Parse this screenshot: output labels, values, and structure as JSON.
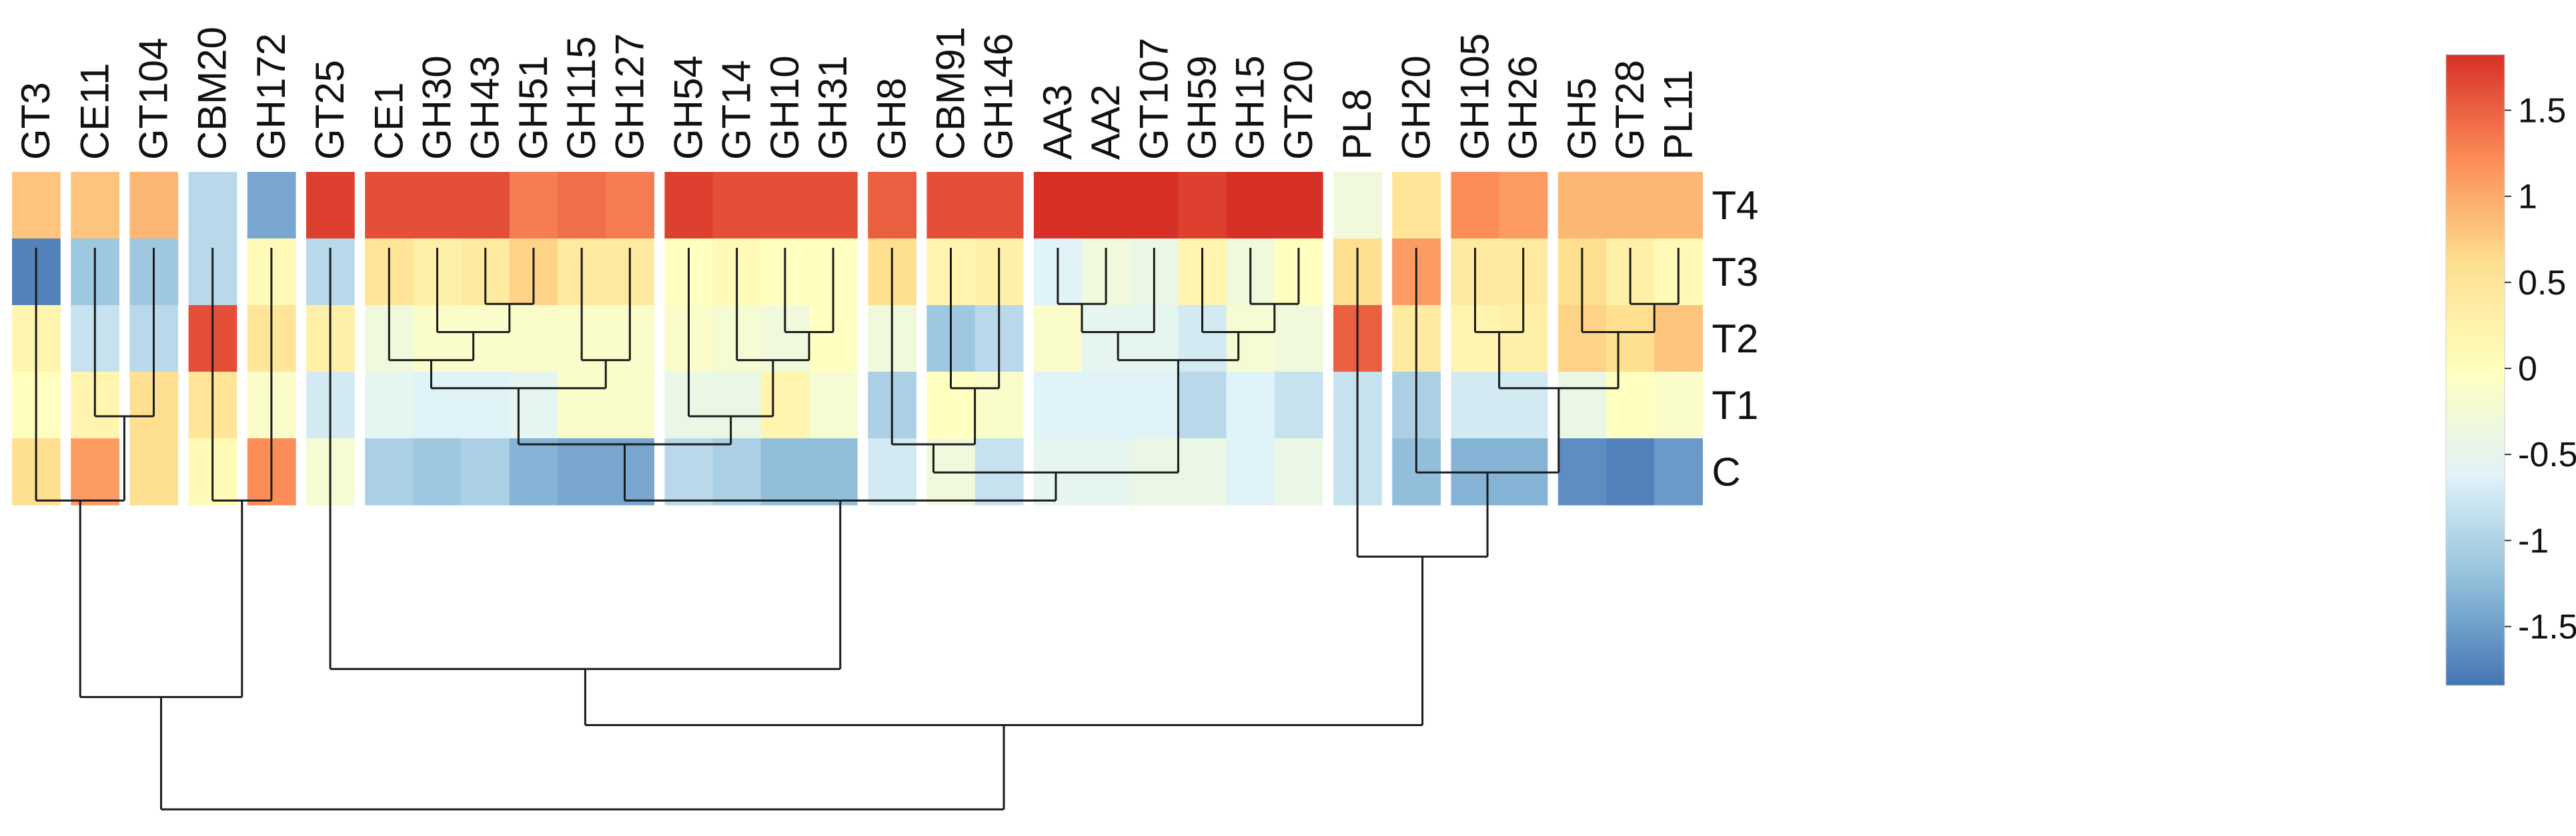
{
  "chart_data": {
    "type": "heatmap",
    "title": "",
    "xlabel": "",
    "ylabel": "",
    "rows": [
      "T4",
      "T3",
      "T2",
      "T1",
      "C"
    ],
    "columns": [
      "GT3",
      "CE11",
      "GT104",
      "CBM20",
      "GH172",
      "GT25",
      "CE1",
      "GH30",
      "GH43",
      "GH51",
      "GH115",
      "GH127",
      "GH54",
      "GT14",
      "GH10",
      "GH31",
      "GH8",
      "CBM91",
      "GH146",
      "AA3",
      "AA2",
      "GT107",
      "GH59",
      "GH15",
      "GT20",
      "PL8",
      "GH20",
      "GH105",
      "GH26",
      "GH5",
      "GT28",
      "PL11"
    ],
    "column_groups": [
      [
        0
      ],
      [
        1
      ],
      [
        2
      ],
      [
        3
      ],
      [
        4
      ],
      [
        5
      ],
      [
        6,
        7,
        8,
        9,
        10,
        11
      ],
      [
        12,
        13,
        14,
        15
      ],
      [
        16
      ],
      [
        17,
        18
      ],
      [
        19,
        20,
        21,
        22,
        23,
        24
      ],
      [
        25
      ],
      [
        26
      ],
      [
        27,
        28
      ],
      [
        29,
        30,
        31
      ]
    ],
    "values": [
      [
        0.8,
        0.8,
        0.9,
        -0.9,
        -1.4,
        1.7,
        1.6,
        1.6,
        1.6,
        1.3,
        1.4,
        1.3,
        1.7,
        1.6,
        1.6,
        1.6,
        1.5,
        1.6,
        1.6,
        1.8,
        1.8,
        1.8,
        1.7,
        1.8,
        1.8,
        -0.3,
        0.5,
        1.2,
        1.1,
        0.9,
        0.9,
        0.9
      ],
      [
        -1.7,
        -1.1,
        -1.1,
        -0.9,
        0.1,
        -0.9,
        0.5,
        0.3,
        0.4,
        0.7,
        0.4,
        0.4,
        0.0,
        0.1,
        0.0,
        0.0,
        0.6,
        0.2,
        0.3,
        -0.6,
        -0.3,
        -0.4,
        0.2,
        -0.3,
        0.0,
        0.6,
        1.1,
        0.4,
        0.4,
        0.6,
        0.3,
        0.1
      ],
      [
        0.2,
        -0.8,
        -0.9,
        1.6,
        0.5,
        0.3,
        -0.3,
        -0.1,
        -0.1,
        -0.1,
        -0.1,
        -0.1,
        -0.1,
        -0.2,
        -0.3,
        0.0,
        -0.3,
        -1.1,
        -0.9,
        -0.1,
        -0.5,
        -0.5,
        -0.7,
        -0.2,
        -0.3,
        1.5,
        0.4,
        0.2,
        0.3,
        0.7,
        0.6,
        0.8
      ],
      [
        0.0,
        0.2,
        0.6,
        0.5,
        -0.1,
        -0.7,
        -0.5,
        -0.6,
        -0.6,
        -0.5,
        -0.1,
        -0.1,
        -0.4,
        -0.4,
        0.2,
        -0.2,
        -1.0,
        0.0,
        -0.1,
        -0.6,
        -0.6,
        -0.6,
        -0.9,
        -0.6,
        -0.8,
        -0.8,
        -1.0,
        -0.7,
        -0.7,
        -0.4,
        0.0,
        -0.1
      ],
      [
        0.6,
        1.1,
        0.6,
        0.1,
        1.2,
        -0.2,
        -1.0,
        -1.1,
        -1.0,
        -1.3,
        -1.4,
        -1.4,
        -0.9,
        -1.0,
        -1.2,
        -1.2,
        -0.7,
        -0.3,
        -0.8,
        -0.5,
        -0.5,
        -0.4,
        -0.4,
        -0.6,
        -0.4,
        -0.8,
        -1.2,
        -1.3,
        -1.3,
        -1.6,
        -1.7,
        -1.5
      ]
    ],
    "color_scale": {
      "min": -1.8,
      "max": 1.8,
      "stops": [
        "#4575b4",
        "#91bfdb",
        "#e0f3f8",
        "#ffffbf",
        "#fee090",
        "#fc8d59",
        "#d73027"
      ],
      "ticks": [
        1.5,
        1,
        0.5,
        0,
        -0.5,
        -1,
        -1.5
      ],
      "tick_labels": [
        "1.5",
        "1",
        "0.5",
        "0",
        "-0.5",
        "-1",
        "-1.5"
      ]
    },
    "dendrogram": {
      "merges": [
        [
          1,
          2,
          0.3
        ],
        [
          0,
          32,
          0.45
        ],
        [
          3,
          4,
          0.45
        ],
        [
          33,
          34,
          0.8
        ],
        [
          8,
          9,
          0.1
        ],
        [
          7,
          36,
          0.15
        ],
        [
          6,
          37,
          0.2
        ],
        [
          10,
          11,
          0.2
        ],
        [
          38,
          39,
          0.25
        ],
        [
          14,
          15,
          0.15
        ],
        [
          13,
          41,
          0.2
        ],
        [
          12,
          42,
          0.3
        ],
        [
          40,
          43,
          0.35
        ],
        [
          17,
          18,
          0.25
        ],
        [
          16,
          45,
          0.35
        ],
        [
          23,
          24,
          0.1
        ],
        [
          22,
          47,
          0.15
        ],
        [
          19,
          20,
          0.1
        ],
        [
          49,
          21,
          0.15
        ],
        [
          50,
          48,
          0.2
        ],
        [
          46,
          51,
          0.4
        ],
        [
          44,
          52,
          0.45
        ],
        [
          5,
          53,
          0.75
        ],
        [
          30,
          31,
          0.1
        ],
        [
          29,
          55,
          0.15
        ],
        [
          27,
          28,
          0.15
        ],
        [
          57,
          56,
          0.25
        ],
        [
          26,
          58,
          0.4
        ],
        [
          25,
          59,
          0.55
        ],
        [
          54,
          60,
          0.85
        ],
        [
          35,
          61,
          1.0
        ]
      ]
    }
  }
}
